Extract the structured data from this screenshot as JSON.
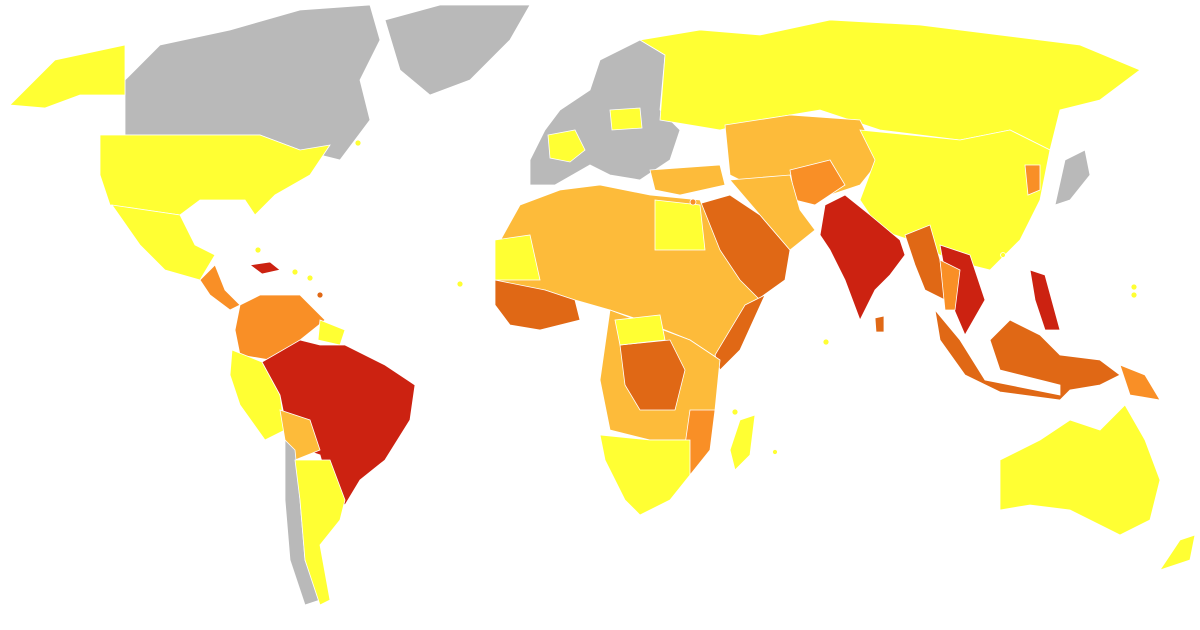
{
  "map": {
    "colors": [
      "#b9b9b9",
      "#ffff33",
      "#fdbb3a",
      "#f98f26",
      "#e06815",
      "#cc2211"
    ]
  }
}
